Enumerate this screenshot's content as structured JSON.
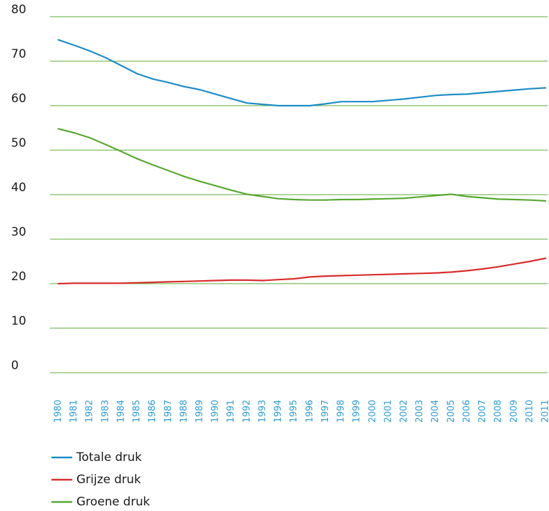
{
  "chart_data": {
    "type": "line",
    "x": [
      "1980",
      "1981",
      "1982",
      "1983",
      "1984",
      "1985",
      "1986",
      "1987",
      "1988",
      "1989",
      "1990",
      "1991",
      "1992",
      "1993",
      "1994",
      "1995",
      "1996",
      "1997",
      "1998",
      "1999",
      "2000",
      "2001",
      "2002",
      "2003",
      "2004",
      "2005",
      "2006",
      "2007",
      "2008",
      "2009",
      "2010",
      "2011"
    ],
    "ylim": [
      0,
      80
    ],
    "yticks": [
      0,
      10,
      20,
      30,
      40,
      50,
      60,
      70,
      80
    ],
    "grid": true,
    "legend_position": "bottom-left",
    "series": [
      {
        "name": "Totale druk",
        "color": "#1b8cc8",
        "values": [
          74.8,
          73.6,
          72.3,
          70.8,
          69.0,
          67.2,
          66.0,
          65.2,
          64.3,
          63.6,
          62.6,
          61.6,
          60.6,
          60.3,
          60.0,
          60.0,
          60.0,
          60.4,
          60.9,
          60.9,
          60.9,
          61.2,
          61.5,
          61.9,
          62.3,
          62.5,
          62.6,
          62.9,
          63.2,
          63.5,
          63.8,
          64.0
        ]
      },
      {
        "name": "Grijze druk",
        "color": "#d92b2b",
        "values": [
          20.0,
          20.1,
          20.1,
          20.1,
          20.1,
          20.2,
          20.3,
          20.4,
          20.5,
          20.6,
          20.7,
          20.8,
          20.8,
          20.7,
          20.9,
          21.1,
          21.5,
          21.7,
          21.8,
          21.9,
          22.0,
          22.1,
          22.2,
          22.3,
          22.4,
          22.6,
          22.9,
          23.3,
          23.8,
          24.4,
          25.0,
          25.7
        ]
      },
      {
        "name": "Groene druk",
        "color": "#55a82e",
        "values": [
          54.8,
          53.9,
          52.8,
          51.3,
          49.7,
          48.1,
          46.7,
          45.4,
          44.1,
          43.0,
          42.0,
          41.0,
          40.1,
          39.6,
          39.1,
          38.9,
          38.8,
          38.8,
          38.9,
          38.9,
          39.0,
          39.1,
          39.2,
          39.5,
          39.8,
          40.1,
          39.6,
          39.3,
          39.0,
          38.9,
          38.8,
          38.6
        ]
      }
    ]
  },
  "colors": {
    "gridline": "#5aab32",
    "xtick_text": "#2a9bd6",
    "ytick_text": "#1a1a1a"
  }
}
